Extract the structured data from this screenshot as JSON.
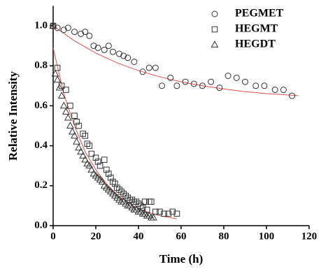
{
  "chart_data": {
    "type": "scatter",
    "x_label": "Time (h)",
    "y_label": "Relative Intensity",
    "xlim": [
      0,
      120
    ],
    "ylim": [
      0,
      1.1
    ],
    "xticks": [
      0,
      20,
      40,
      60,
      80,
      100,
      120
    ],
    "yticks": [
      {
        "value": 0,
        "label": "0.0"
      },
      {
        "value": 0.2,
        "label": "0.2"
      },
      {
        "value": 0.4,
        "label": "0.4"
      },
      {
        "value": 0.6,
        "label": "0.6"
      },
      {
        "value": 0.8,
        "label": "0.8"
      },
      {
        "value": 1.0,
        "label": "1.0"
      }
    ],
    "legend": "upper right",
    "series": [
      {
        "name": "PEGMET",
        "marker": "circle",
        "color": "#333333",
        "x": [
          0,
          2,
          5,
          7,
          10,
          13,
          15,
          17,
          19,
          21,
          24,
          26,
          28,
          31,
          33,
          35,
          38,
          42,
          45,
          48,
          51,
          55,
          58,
          62,
          66,
          70,
          74,
          78,
          82,
          86,
          90,
          95,
          99,
          104,
          108,
          112
        ],
        "values": [
          1.0,
          0.99,
          0.98,
          0.99,
          0.97,
          0.96,
          0.97,
          0.95,
          0.9,
          0.89,
          0.88,
          0.9,
          0.87,
          0.86,
          0.85,
          0.84,
          0.82,
          0.77,
          0.79,
          0.79,
          0.7,
          0.74,
          0.7,
          0.72,
          0.71,
          0.7,
          0.72,
          0.69,
          0.75,
          0.74,
          0.72,
          0.7,
          0.7,
          0.68,
          0.68,
          0.65
        ]
      },
      {
        "name": "HEGMT",
        "marker": "square",
        "color": "#333333",
        "x": [
          0,
          2,
          4,
          6,
          8,
          10,
          11,
          12,
          14,
          15,
          16,
          17,
          18,
          20,
          21,
          22,
          24,
          25,
          26,
          27,
          28,
          29,
          30,
          31,
          32,
          33,
          34,
          35,
          36,
          37,
          38,
          39,
          40,
          41,
          42,
          43,
          44,
          45,
          46,
          48,
          50,
          52,
          54,
          56,
          58
        ],
        "values": [
          1.0,
          0.79,
          0.7,
          0.68,
          0.6,
          0.55,
          0.52,
          0.5,
          0.46,
          0.45,
          0.41,
          0.4,
          0.36,
          0.34,
          0.32,
          0.3,
          0.33,
          0.28,
          0.26,
          0.24,
          0.22,
          0.21,
          0.19,
          0.18,
          0.17,
          0.16,
          0.15,
          0.14,
          0.13,
          0.13,
          0.12,
          0.12,
          0.11,
          0.1,
          0.09,
          0.12,
          0.08,
          0.12,
          0.12,
          0.07,
          0.07,
          0.06,
          0.06,
          0.07,
          0.06
        ]
      },
      {
        "name": "HEGDT",
        "marker": "triangle",
        "color": "#333333",
        "x": [
          0,
          1,
          2,
          3,
          4,
          5,
          6,
          7,
          8,
          9,
          10,
          11,
          12,
          13,
          14,
          15,
          16,
          17,
          18,
          19,
          20,
          21,
          22,
          23,
          24,
          25,
          26,
          27,
          28,
          29,
          30,
          31,
          32,
          33,
          34,
          35,
          36,
          37,
          38,
          39,
          40,
          41,
          42,
          43,
          44,
          45,
          46,
          47
        ],
        "values": [
          1.0,
          0.76,
          0.73,
          0.69,
          0.65,
          0.6,
          0.57,
          0.54,
          0.5,
          0.47,
          0.45,
          0.42,
          0.39,
          0.37,
          0.35,
          0.33,
          0.31,
          0.3,
          0.28,
          0.26,
          0.25,
          0.24,
          0.23,
          0.22,
          0.2,
          0.19,
          0.18,
          0.17,
          0.16,
          0.15,
          0.14,
          0.13,
          0.12,
          0.12,
          0.11,
          0.1,
          0.1,
          0.09,
          0.08,
          0.08,
          0.07,
          0.07,
          0.06,
          0.06,
          0.05,
          0.05,
          0.04,
          0.04
        ]
      }
    ],
    "fits": [
      {
        "color": "#e05050",
        "x": [
          0,
          10,
          20,
          30,
          40,
          50,
          60,
          70,
          80,
          90,
          100,
          115
        ],
        "values": [
          1.0,
          0.925,
          0.864,
          0.815,
          0.776,
          0.745,
          0.72,
          0.7,
          0.684,
          0.671,
          0.661,
          0.651
        ]
      },
      {
        "color": "#e05050",
        "x": [
          0,
          5,
          10,
          15,
          20,
          25,
          30,
          35,
          40,
          45,
          50,
          55,
          58
        ],
        "values": [
          0.89,
          0.66,
          0.5,
          0.37,
          0.28,
          0.21,
          0.155,
          0.115,
          0.085,
          0.065,
          0.05,
          0.04,
          0.035
        ]
      }
    ]
  }
}
